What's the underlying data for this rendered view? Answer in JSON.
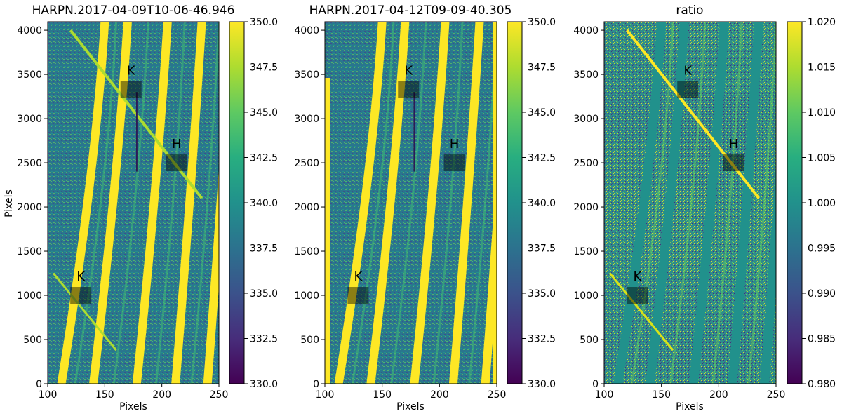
{
  "figure": {
    "panels": [
      {
        "title": "HARPN.2017-04-09T10-06-46.946",
        "xlabel": "Pixels",
        "ylabel": "Pixels",
        "xlim": [
          100,
          250
        ],
        "ylim": [
          0,
          4096
        ],
        "xticks": [
          "100",
          "150",
          "200",
          "250"
        ],
        "yticks": [
          "0",
          "500",
          "1000",
          "1500",
          "2000",
          "2500",
          "3000",
          "3500",
          "4000"
        ],
        "colorbar": {
          "range": [
            330.0,
            350.0
          ],
          "ticks": [
            "330.0",
            "332.5",
            "335.0",
            "337.5",
            "340.0",
            "342.5",
            "345.0",
            "347.5",
            "350.0"
          ]
        },
        "boxes": [
          {
            "label": "K",
            "x": 129,
            "y": 1000
          },
          {
            "label": "K",
            "x": 173,
            "y": 3330
          },
          {
            "label": "H",
            "x": 213,
            "y": 2500
          }
        ]
      },
      {
        "title": "HARPN.2017-04-12T09-09-40.305",
        "xlabel": "Pixels",
        "ylabel": "",
        "xlim": [
          100,
          250
        ],
        "ylim": [
          0,
          4096
        ],
        "xticks": [
          "100",
          "150",
          "200",
          "250"
        ],
        "yticks": [
          "0",
          "500",
          "1000",
          "1500",
          "2000",
          "2500",
          "3000",
          "3500",
          "4000"
        ],
        "colorbar": {
          "range": [
            330.0,
            350.0
          ],
          "ticks": [
            "330.0",
            "332.5",
            "335.0",
            "337.5",
            "340.0",
            "342.5",
            "345.0",
            "347.5",
            "350.0"
          ]
        },
        "boxes": [
          {
            "label": "K",
            "x": 129,
            "y": 1000
          },
          {
            "label": "K",
            "x": 173,
            "y": 3330
          },
          {
            "label": "H",
            "x": 213,
            "y": 2500
          }
        ]
      },
      {
        "title": "ratio",
        "xlabel": "Pixels",
        "ylabel": "",
        "xlim": [
          100,
          250
        ],
        "ylim": [
          0,
          4096
        ],
        "xticks": [
          "100",
          "150",
          "200",
          "250"
        ],
        "yticks": [
          "0",
          "500",
          "1000",
          "1500",
          "2000",
          "2500",
          "3000",
          "3500",
          "4000"
        ],
        "colorbar": {
          "range": [
            0.98,
            1.02
          ],
          "ticks": [
            "0.980",
            "0.985",
            "0.990",
            "0.995",
            "1.000",
            "1.005",
            "1.010",
            "1.015",
            "1.020"
          ]
        },
        "boxes": [
          {
            "label": "K",
            "x": 129,
            "y": 1000
          },
          {
            "label": "K",
            "x": 173,
            "y": 3330
          },
          {
            "label": "H",
            "x": 213,
            "y": 2500
          }
        ]
      }
    ]
  },
  "chart_data": [
    {
      "type": "heatmap",
      "title": "HARPN.2017-04-09T10-06-46.946",
      "xlabel": "Pixels",
      "ylabel": "Pixels",
      "xlim": [
        100,
        250
      ],
      "ylim": [
        0,
        4096
      ],
      "colormap": "viridis",
      "clim": [
        330.0,
        350.0
      ],
      "annotations": [
        {
          "label": "K",
          "x": 129,
          "y": 1000
        },
        {
          "label": "K",
          "x": 173,
          "y": 3330
        },
        {
          "label": "H",
          "x": 213,
          "y": 2500
        }
      ]
    },
    {
      "type": "heatmap",
      "title": "HARPN.2017-04-12T09-09-40.305",
      "xlabel": "Pixels",
      "ylabel": "",
      "xlim": [
        100,
        250
      ],
      "ylim": [
        0,
        4096
      ],
      "colormap": "viridis",
      "clim": [
        330.0,
        350.0
      ],
      "annotations": [
        {
          "label": "K",
          "x": 129,
          "y": 1000
        },
        {
          "label": "K",
          "x": 173,
          "y": 3330
        },
        {
          "label": "H",
          "x": 213,
          "y": 2500
        }
      ]
    },
    {
      "type": "heatmap",
      "title": "ratio",
      "xlabel": "Pixels",
      "ylabel": "",
      "xlim": [
        100,
        250
      ],
      "ylim": [
        0,
        4096
      ],
      "colormap": "viridis",
      "clim": [
        0.98,
        1.02
      ],
      "annotations": [
        {
          "label": "K",
          "x": 129,
          "y": 1000
        },
        {
          "label": "K",
          "x": 173,
          "y": 3330
        },
        {
          "label": "H",
          "x": 213,
          "y": 2500
        }
      ]
    }
  ]
}
